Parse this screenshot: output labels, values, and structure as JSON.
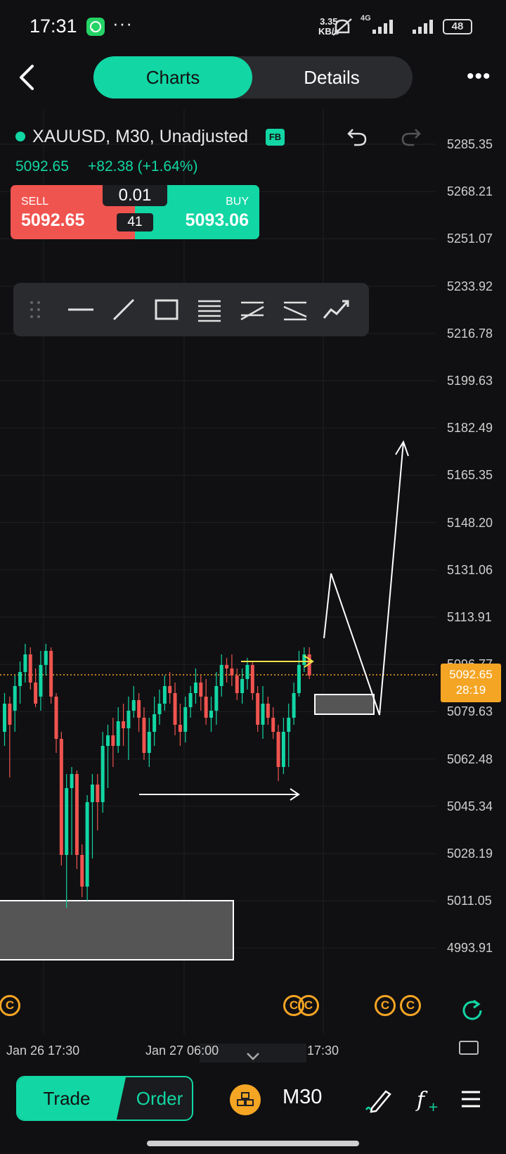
{
  "status_bar": {
    "time": "17:31",
    "more": "···",
    "speed_value": "3.35",
    "speed_unit": "KB/s",
    "network": "4G",
    "battery": "48",
    "icons": [
      "whatsapp-icon",
      "mute-icon",
      "signal-icon",
      "battery-icon"
    ]
  },
  "header": {
    "tabs": [
      {
        "label": "Charts",
        "active": true
      },
      {
        "label": "Details",
        "active": false
      }
    ],
    "more": "•••"
  },
  "instrument": {
    "title": "XAUUSD, M30, Unadjusted",
    "badge": "FB",
    "last_price": "5092.65",
    "change": "+82.38 (+1.64%)"
  },
  "trade_box": {
    "sell_label": "SELL",
    "sell_price": "5092.65",
    "buy_label": "BUY",
    "buy_price": "5093.06",
    "lot": "0.01",
    "spread": "41"
  },
  "drawing_toolbar": {
    "tools": [
      "drag-handle-icon",
      "horizontal-line-icon",
      "trend-line-icon",
      "rectangle-icon",
      "fib-retracement-icon",
      "parallel-channel-icon",
      "fib-fan-icon",
      "path-icon"
    ]
  },
  "y_axis": {
    "labels": [
      "5285.35",
      "5268.21",
      "5251.07",
      "5233.92",
      "5216.78",
      "5199.63",
      "5182.49",
      "5165.35",
      "5148.20",
      "5131.06",
      "5113.91",
      "5096.77",
      "5079.63",
      "5062.48",
      "5045.34",
      "5028.19",
      "5011.05",
      "4993.91"
    ]
  },
  "current_price_tag": {
    "price": "5092.65",
    "countdown": "28:19"
  },
  "x_axis": {
    "labels": [
      "Jan 26 17:30",
      "Jan 27 06:00",
      "17:30"
    ]
  },
  "calendar_badges": [
    "C",
    "C",
    "C",
    "C",
    "C"
  ],
  "colors": {
    "up": "#12d6a4",
    "down": "#f0544f",
    "accent": "#12d6a4",
    "price_tag": "#f5a524",
    "background": "#101012"
  },
  "bottom_bar": {
    "trade_label": "Trade",
    "order_label": "Order",
    "timeframe": "M30",
    "icons": [
      "gold-icon",
      "draw-icon",
      "indicator-icon",
      "menu-icon"
    ]
  }
}
